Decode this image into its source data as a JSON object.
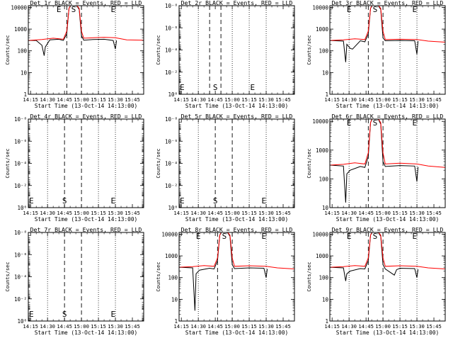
{
  "x_tick_labels": [
    "14:15",
    "14:30",
    "14:45",
    "15:00",
    "15:15",
    "15:30",
    "15:45"
  ],
  "xlabel": "Start Time (13-Oct-14 14:13:00)",
  "ylabel": "Counts/sec",
  "marker_labels": {
    "E1": "E",
    "S": "S",
    "E2": "E"
  },
  "colors": {
    "events": "#000000",
    "lld": "#ff0000"
  },
  "chart_data": [
    {
      "type": "line",
      "title": "Det 1r BLACK = Events, RED = LLD",
      "ylabel": "Counts/sec",
      "y_scale": "log",
      "ylim": [
        1,
        12000
      ],
      "xlim": [
        "14:13",
        "15:55"
      ],
      "y_tick_labels": [
        "1",
        "10",
        "100",
        "1000",
        "10000"
      ],
      "y_tick_values": [
        1,
        10,
        100,
        1000,
        10000
      ],
      "markers": {
        "E1": "14:40",
        "S": "14:53",
        "E2": "15:28"
      },
      "vlines_dotted": [
        "14:30",
        "15:15",
        "15:30"
      ],
      "vlines_dashed": [
        "14:47",
        "15:00"
      ],
      "series": [
        {
          "key": "events",
          "points": [
            [
              "14:13",
              300
            ],
            [
              "14:20",
              300
            ],
            [
              "14:25",
              180
            ],
            [
              "14:27",
              60
            ],
            [
              "14:28",
              150
            ],
            [
              "14:32",
              320
            ],
            [
              "14:40",
              340
            ],
            [
              "14:44",
              300
            ],
            [
              "14:47",
              600
            ],
            [
              "14:49",
              9000
            ],
            [
              "14:51",
              14000
            ],
            [
              "14:55",
              14000
            ],
            [
              "14:58",
              8000
            ],
            [
              "15:00",
              500
            ],
            [
              "15:02",
              310
            ],
            [
              "15:10",
              330
            ],
            [
              "15:20",
              340
            ],
            [
              "15:28",
              300
            ],
            [
              "15:30",
              120
            ],
            [
              "15:31",
              300
            ]
          ]
        },
        {
          "key": "lld",
          "points": [
            [
              "14:13",
              300
            ],
            [
              "14:25",
              330
            ],
            [
              "14:35",
              380
            ],
            [
              "14:44",
              340
            ],
            [
              "14:47",
              800
            ],
            [
              "14:49",
              9000
            ],
            [
              "14:51",
              14000
            ],
            [
              "14:55",
              14000
            ],
            [
              "14:58",
              9000
            ],
            [
              "15:00",
              800
            ],
            [
              "15:02",
              380
            ],
            [
              "15:10",
              400
            ],
            [
              "15:20",
              420
            ],
            [
              "15:30",
              400
            ],
            [
              "15:40",
              320
            ],
            [
              "15:55",
              310
            ]
          ]
        }
      ]
    },
    {
      "type": "line",
      "title": "Det 2r BLACK = Events, RED = LLD",
      "ylabel": "Counts/sec",
      "y_scale": "log",
      "ylim": [
        1,
        1e-08
      ],
      "xlim": [
        "14:13",
        "15:55"
      ],
      "y_tick_labels": [
        "10⁰",
        "10⁻²",
        "10⁻⁴",
        "10⁻⁶",
        "10⁻⁸"
      ],
      "y_tick_values": [
        1,
        0.01,
        0.0001,
        1e-06,
        1e-08
      ],
      "markers": {
        "E1": "14:13",
        "S": "14:45",
        "E2": "15:18"
      },
      "vlines_dotted": [
        "14:30",
        "15:00",
        "15:15",
        "15:30"
      ],
      "vlines_dashed": [
        "14:40",
        "14:50"
      ],
      "series": []
    },
    {
      "type": "line",
      "title": "Det 3r BLACK = Events, RED = LLD",
      "ylabel": "Counts/sec",
      "y_scale": "log",
      "ylim": [
        1,
        12000
      ],
      "xlim": [
        "14:13",
        "15:55"
      ],
      "y_tick_labels": [
        "1",
        "10",
        "100",
        "1000",
        "10000"
      ],
      "y_tick_values": [
        1,
        10,
        100,
        1000,
        10000
      ],
      "markers": {
        "E1": "14:30",
        "S": "14:53",
        "E2": "15:28"
      },
      "vlines_dotted": [
        "14:30",
        "15:15",
        "15:30"
      ],
      "vlines_dashed": [
        "14:47",
        "15:00"
      ],
      "series": [
        {
          "key": "events",
          "points": [
            [
              "14:13",
              300
            ],
            [
              "14:25",
              280
            ],
            [
              "14:27",
              30
            ],
            [
              "14:28",
              200
            ],
            [
              "14:31",
              130
            ],
            [
              "14:33",
              120
            ],
            [
              "14:40",
              290
            ],
            [
              "14:44",
              260
            ],
            [
              "14:47",
              600
            ],
            [
              "14:49",
              9000
            ],
            [
              "14:51",
              14000
            ],
            [
              "14:55",
              14000
            ],
            [
              "14:58",
              8000
            ],
            [
              "15:00",
              400
            ],
            [
              "15:02",
              290
            ],
            [
              "15:15",
              300
            ],
            [
              "15:28",
              290
            ],
            [
              "15:30",
              70
            ],
            [
              "15:31",
              280
            ]
          ]
        },
        {
          "key": "lld",
          "points": [
            [
              "14:13",
              300
            ],
            [
              "14:25",
              320
            ],
            [
              "14:35",
              360
            ],
            [
              "14:44",
              330
            ],
            [
              "14:47",
              800
            ],
            [
              "14:49",
              9000
            ],
            [
              "14:51",
              14000
            ],
            [
              "14:55",
              14000
            ],
            [
              "14:58",
              9000
            ],
            [
              "15:00",
              800
            ],
            [
              "15:02",
              330
            ],
            [
              "15:15",
              340
            ],
            [
              "15:30",
              330
            ],
            [
              "15:40",
              280
            ],
            [
              "15:55",
              250
            ]
          ]
        }
      ]
    },
    {
      "type": "line",
      "title": "Det 4r BLACK = Events, RED = LLD",
      "ylabel": "Counts/sec",
      "y_scale": "log",
      "ylim": [
        1,
        1e-08
      ],
      "xlim": [
        "14:13",
        "15:55"
      ],
      "y_tick_labels": [
        "10⁰",
        "10⁻²",
        "10⁻⁴",
        "10⁻⁶",
        "10⁻⁸"
      ],
      "y_tick_values": [
        1,
        0.01,
        0.0001,
        1e-06,
        1e-08
      ],
      "markers": {
        "E1": "14:13",
        "S": "14:45",
        "E2": "15:28"
      },
      "vlines_dotted": [
        "14:30",
        "15:15",
        "15:30"
      ],
      "vlines_dashed": [
        "14:45",
        "15:00"
      ],
      "series": []
    },
    {
      "type": "line",
      "title": "Det 5r BLACK = Events, RED = LLD",
      "ylabel": "Counts/sec",
      "y_scale": "log",
      "ylim": [
        1,
        1e-08
      ],
      "xlim": [
        "14:13",
        "15:55"
      ],
      "y_tick_labels": [
        "10⁰",
        "10⁻²",
        "10⁻⁴",
        "10⁻⁶",
        "10⁻⁸"
      ],
      "y_tick_values": [
        1,
        0.01,
        0.0001,
        1e-06,
        1e-08
      ],
      "markers": {
        "E1": "14:13",
        "S": "14:45",
        "E2": "15:28"
      },
      "vlines_dotted": [
        "14:30",
        "15:15",
        "15:30"
      ],
      "vlines_dashed": [
        "14:45",
        "15:00"
      ],
      "series": []
    },
    {
      "type": "line",
      "title": "Det 6r BLACK = Events, RED = LLD",
      "ylabel": "Counts/sec",
      "y_scale": "log",
      "ylim": [
        10,
        12000
      ],
      "xlim": [
        "14:13",
        "15:55"
      ],
      "y_tick_labels": [
        "10",
        "100",
        "1000",
        "10000"
      ],
      "y_tick_values": [
        10,
        100,
        1000,
        10000
      ],
      "markers": {
        "E1": "14:30",
        "S": "14:53",
        "E2": "15:28"
      },
      "vlines_dotted": [
        "14:30",
        "15:15",
        "15:30"
      ],
      "vlines_dashed": [
        "14:47",
        "15:00"
      ],
      "series": [
        {
          "key": "events",
          "points": [
            [
              "14:13",
              300
            ],
            [
              "14:25",
              280
            ],
            [
              "14:27",
              15
            ],
            [
              "14:28",
              150
            ],
            [
              "14:31",
              200
            ],
            [
              "14:40",
              270
            ],
            [
              "14:44",
              250
            ],
            [
              "14:47",
              600
            ],
            [
              "14:49",
              9000
            ],
            [
              "14:51",
              14000
            ],
            [
              "14:55",
              14000
            ],
            [
              "14:58",
              8000
            ],
            [
              "15:00",
              400
            ],
            [
              "15:02",
              270
            ],
            [
              "15:15",
              290
            ],
            [
              "15:28",
              280
            ],
            [
              "15:30",
              80
            ],
            [
              "15:31",
              260
            ]
          ]
        },
        {
          "key": "lld",
          "points": [
            [
              "14:13",
              300
            ],
            [
              "14:25",
              320
            ],
            [
              "14:35",
              360
            ],
            [
              "14:44",
              330
            ],
            [
              "14:47",
              800
            ],
            [
              "14:49",
              9000
            ],
            [
              "14:51",
              14000
            ],
            [
              "14:55",
              14000
            ],
            [
              "14:58",
              9000
            ],
            [
              "15:00",
              800
            ],
            [
              "15:02",
              330
            ],
            [
              "15:15",
              350
            ],
            [
              "15:30",
              330
            ],
            [
              "15:40",
              280
            ],
            [
              "15:55",
              250
            ]
          ]
        }
      ]
    },
    {
      "type": "line",
      "title": "Det 7r BLACK = Events, RED = LLD",
      "ylabel": "Counts/sec",
      "y_scale": "log",
      "ylim": [
        1,
        1e-08
      ],
      "xlim": [
        "14:13",
        "15:55"
      ],
      "y_tick_labels": [
        "10⁰",
        "10⁻²",
        "10⁻⁴",
        "10⁻⁶",
        "10⁻⁸"
      ],
      "y_tick_values": [
        1,
        0.01,
        0.0001,
        1e-06,
        1e-08
      ],
      "markers": {
        "E1": "14:13",
        "S": "14:45",
        "E2": "15:28"
      },
      "vlines_dotted": [
        "14:30",
        "15:15",
        "15:30"
      ],
      "vlines_dashed": [
        "14:45",
        "15:00"
      ],
      "series": []
    },
    {
      "type": "line",
      "title": "Det 8r BLACK = Events, RED = LLD",
      "ylabel": "Counts/sec",
      "y_scale": "log",
      "ylim": [
        1,
        12000
      ],
      "xlim": [
        "14:13",
        "15:55"
      ],
      "y_tick_labels": [
        "1",
        "10",
        "100",
        "1000",
        "10000"
      ],
      "y_tick_values": [
        1,
        10,
        100,
        1000,
        10000
      ],
      "markers": {
        "E1": "14:30",
        "S": "14:53",
        "E2": "15:28"
      },
      "vlines_dotted": [
        "14:30",
        "15:15",
        "15:30"
      ],
      "vlines_dashed": [
        "14:47",
        "15:00"
      ],
      "series": [
        {
          "key": "events",
          "points": [
            [
              "14:13",
              300
            ],
            [
              "14:25",
              280
            ],
            [
              "14:27",
              3
            ],
            [
              "14:28",
              150
            ],
            [
              "14:31",
              220
            ],
            [
              "14:40",
              270
            ],
            [
              "14:44",
              250
            ],
            [
              "14:47",
              600
            ],
            [
              "14:49",
              9000
            ],
            [
              "14:51",
              14000
            ],
            [
              "14:55",
              14000
            ],
            [
              "14:58",
              8000
            ],
            [
              "15:00",
              400
            ],
            [
              "15:02",
              260
            ],
            [
              "15:15",
              280
            ],
            [
              "15:28",
              270
            ],
            [
              "15:30",
              100
            ],
            [
              "15:31",
              250
            ]
          ]
        },
        {
          "key": "lld",
          "points": [
            [
              "14:13",
              300
            ],
            [
              "14:25",
              320
            ],
            [
              "14:35",
              360
            ],
            [
              "14:44",
              330
            ],
            [
              "14:47",
              800
            ],
            [
              "14:49",
              9000
            ],
            [
              "14:51",
              14000
            ],
            [
              "14:55",
              14000
            ],
            [
              "14:58",
              9000
            ],
            [
              "15:00",
              800
            ],
            [
              "15:02",
              330
            ],
            [
              "15:15",
              350
            ],
            [
              "15:30",
              330
            ],
            [
              "15:40",
              280
            ],
            [
              "15:55",
              250
            ]
          ]
        }
      ]
    },
    {
      "type": "line",
      "title": "Det 9r BLACK = Events, RED = LLD",
      "ylabel": "Counts/sec",
      "y_scale": "log",
      "ylim": [
        1,
        12000
      ],
      "xlim": [
        "14:13",
        "15:55"
      ],
      "y_tick_labels": [
        "1",
        "10",
        "100",
        "1000",
        "10000"
      ],
      "y_tick_values": [
        1,
        10,
        100,
        1000,
        10000
      ],
      "markers": {
        "E1": "14:30",
        "S": "14:53",
        "E2": "15:28"
      },
      "vlines_dotted": [
        "14:30",
        "15:15",
        "15:30"
      ],
      "vlines_dashed": [
        "14:47",
        "15:00"
      ],
      "series": [
        {
          "key": "events",
          "points": [
            [
              "14:13",
              300
            ],
            [
              "14:25",
              280
            ],
            [
              "14:27",
              70
            ],
            [
              "14:28",
              150
            ],
            [
              "14:31",
              200
            ],
            [
              "14:40",
              260
            ],
            [
              "14:44",
              250
            ],
            [
              "14:47",
              600
            ],
            [
              "14:49",
              9000
            ],
            [
              "14:51",
              14000
            ],
            [
              "14:55",
              14000
            ],
            [
              "14:58",
              8000
            ],
            [
              "15:00",
              400
            ],
            [
              "15:02",
              250
            ],
            [
              "15:10",
              130
            ],
            [
              "15:12",
              230
            ],
            [
              "15:15",
              270
            ],
            [
              "15:28",
              260
            ],
            [
              "15:30",
              100
            ],
            [
              "15:31",
              240
            ]
          ]
        },
        {
          "key": "lld",
          "points": [
            [
              "14:13",
              300
            ],
            [
              "14:25",
              320
            ],
            [
              "14:35",
              360
            ],
            [
              "14:44",
              330
            ],
            [
              "14:47",
              800
            ],
            [
              "14:49",
              9000
            ],
            [
              "14:51",
              14000
            ],
            [
              "14:55",
              14000
            ],
            [
              "14:58",
              9000
            ],
            [
              "15:00",
              800
            ],
            [
              "15:02",
              330
            ],
            [
              "15:15",
              350
            ],
            [
              "15:30",
              330
            ],
            [
              "15:40",
              280
            ],
            [
              "15:55",
              250
            ]
          ]
        }
      ]
    }
  ]
}
